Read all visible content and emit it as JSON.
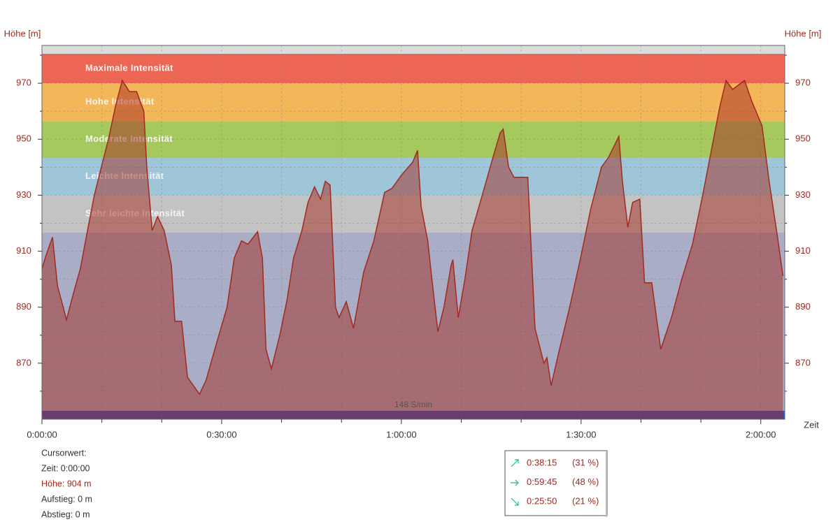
{
  "chart_data": {
    "type": "area",
    "y_label": "Höhe [m]",
    "x_label": "Zeit",
    "xlim": [
      0,
      124
    ],
    "ylim": [
      850,
      983.5
    ],
    "xticks": [
      {
        "value": 0,
        "label": "0:00:00"
      },
      {
        "value": 30,
        "label": "0:30:00"
      },
      {
        "value": 60,
        "label": "1:00:00"
      },
      {
        "value": 90,
        "label": "1:30:00"
      },
      {
        "value": 120,
        "label": "2:00:00"
      }
    ],
    "x_minor_ticks": [
      10,
      20,
      40,
      50,
      70,
      80,
      100,
      110
    ],
    "yticks": [
      870,
      890,
      910,
      930,
      950,
      970
    ],
    "y_minor_ticks": [
      860,
      880,
      900,
      920,
      940,
      960,
      980
    ],
    "grid": true,
    "bands": [
      {
        "name": null,
        "from": 980.5,
        "to": 983.5,
        "color": "#dcdcdc"
      },
      {
        "name": "Maximale Intensität",
        "from": 970,
        "to": 980.5,
        "color": "#ec6653"
      },
      {
        "name": "Hohe Intensität",
        "from": 956.5,
        "to": 970,
        "color": "#f3b659"
      },
      {
        "name": "Moderate Intensität",
        "from": 943.3,
        "to": 956.5,
        "color": "#a6c95d"
      },
      {
        "name": "Leichte Intensität",
        "from": 930,
        "to": 943.3,
        "color": "#9fc6d8"
      },
      {
        "name": "Sehr leichte Intensität",
        "from": 916.7,
        "to": 930,
        "color": "#c3c3c3"
      },
      {
        "name": null,
        "from": 853,
        "to": 916.7,
        "color": "#a9aec6"
      }
    ],
    "cadence_bar": {
      "label": "148 S/min",
      "from": 850,
      "to": 853,
      "color": "#2a52be"
    },
    "series": [
      {
        "name": "Höhe",
        "color": "#a3291f",
        "x": [
          0,
          0.6,
          1.75,
          2.6,
          4.1,
          5.25,
          6.4,
          7.6,
          8.75,
          9.9,
          11.1,
          12.3,
          13.4,
          14.6,
          15.8,
          17,
          17.5,
          18.4,
          19.3,
          20.4,
          21.6,
          22.2,
          23.3,
          24.3,
          26.3,
          27.4,
          29.2,
          30.9,
          32.1,
          33.3,
          34.4,
          36,
          36.8,
          37.4,
          38.3,
          39.7,
          40.9,
          42,
          43.4,
          44.4,
          45.5,
          46.5,
          47.3,
          48.1,
          49,
          49.6,
          50.8,
          52,
          53.7,
          55.4,
          57.2,
          58.4,
          60.1,
          61.9,
          62.7,
          63.3,
          64.4,
          65.1,
          66.1,
          67.1,
          68.3,
          68.6,
          69.5,
          70.6,
          71.8,
          73.5,
          75.3,
          76.5,
          77,
          77.9,
          78.8,
          81.1,
          82.3,
          83.8,
          84.3,
          85,
          86.4,
          88.1,
          89.9,
          91.6,
          93.4,
          94.6,
          96.3,
          96.9,
          97.8,
          98.6,
          99.8,
          100.6,
          101.8,
          103.3,
          105.1,
          106.8,
          108.6,
          110.3,
          112.1,
          113.2,
          114.2,
          115.3,
          117.3,
          118.5,
          120.2,
          121.4,
          122.8,
          123.7
        ],
        "values": [
          903.7,
          908,
          915,
          897.5,
          885.5,
          895,
          903.7,
          917.4,
          930,
          940,
          950,
          962,
          971,
          967,
          967,
          960,
          940,
          917.4,
          922.4,
          917.4,
          905,
          885,
          885,
          865,
          858.9,
          864,
          877.6,
          890,
          907.5,
          913.7,
          912.5,
          917,
          907.5,
          875,
          868,
          880,
          892.5,
          907.5,
          917.4,
          927.4,
          933,
          928.6,
          935,
          933.6,
          890,
          886.3,
          892,
          882.5,
          902.5,
          913.7,
          931,
          932.4,
          937.4,
          941.8,
          946,
          926,
          913.7,
          900,
          881.3,
          890,
          905,
          907,
          886.3,
          900,
          917.4,
          930,
          943.6,
          952.3,
          953.6,
          940,
          936.4,
          936.4,
          882.5,
          870,
          872,
          862,
          875,
          890,
          907.5,
          925,
          940,
          943.6,
          951,
          935,
          918.6,
          927.4,
          928.6,
          898.7,
          898.7,
          875,
          886.3,
          900,
          912.5,
          930,
          950,
          962,
          971,
          967.8,
          971,
          963.5,
          954.8,
          935,
          915,
          901.2
        ]
      }
    ],
    "cursor_panel": [
      "Cursorwert:",
      "Zeit: 0:00:00",
      "Höhe:  904 m",
      "Aufstieg: 0 m",
      "Abstieg: 0 m"
    ],
    "summary": [
      {
        "time": "0:38:15",
        "percent": "(31 %)"
      },
      {
        "time": "0:59:45",
        "percent": "(48 %)"
      },
      {
        "time": "0:25:50",
        "percent": "(21 %)"
      }
    ]
  }
}
